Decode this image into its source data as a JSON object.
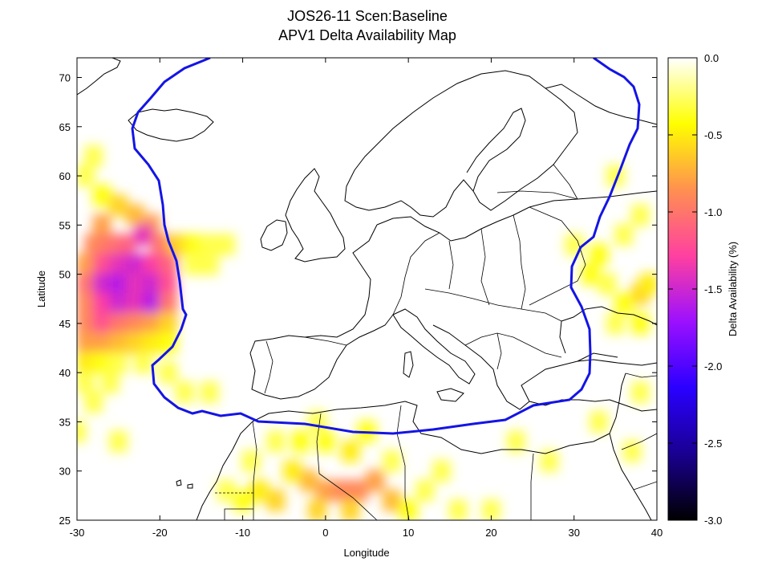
{
  "title": {
    "line1": "JOS26-11 Scen:Baseline",
    "line2": "APV1 Delta Availability Map"
  },
  "axes": {
    "xlabel": "Longitude",
    "ylabel": "Latitude",
    "xlim": [
      -30,
      40
    ],
    "ylim": [
      25,
      72
    ],
    "xticks": [
      -30,
      -20,
      -10,
      0,
      10,
      20,
      30,
      40
    ],
    "yticks": [
      25,
      30,
      35,
      40,
      45,
      50,
      55,
      60,
      65,
      70
    ]
  },
  "colorbar": {
    "label": "Delta Availability (%)",
    "range": [
      -3.0,
      0.0
    ],
    "ticks": [
      "0.0",
      "-0.5",
      "-1.0",
      "-1.5",
      "-2.0",
      "-2.5",
      "-3.0"
    ],
    "tick_values": [
      0.0,
      -0.5,
      -1.0,
      -1.5,
      -2.0,
      -2.5,
      -3.0
    ],
    "colors": [
      "#000000",
      "#1a0090",
      "#2a00ff",
      "#9b10ff",
      "#ff40a0",
      "#ff9050",
      "#ffff00",
      "#ffffff"
    ]
  },
  "colors": {
    "boundary": "#1414e6",
    "coast": "#000000"
  },
  "chart_data": {
    "type": "heatmap",
    "value_name": "Delta Availability (%)",
    "cells_lon_lat_value": [
      [
        -28,
        62,
        -0.3
      ],
      [
        -29,
        60,
        -0.3
      ],
      [
        -27,
        58,
        -0.4
      ],
      [
        -25,
        57,
        -0.6
      ],
      [
        -23,
        56,
        -0.7
      ],
      [
        -21,
        55,
        -0.8
      ],
      [
        -27,
        55,
        -0.8
      ],
      [
        -28,
        53,
        -0.9
      ],
      [
        -26,
        53,
        -1.0
      ],
      [
        -24,
        53,
        -1.1
      ],
      [
        -22,
        54,
        -1.4
      ],
      [
        -20,
        53,
        -1.0
      ],
      [
        -18,
        53,
        -0.6
      ],
      [
        -16,
        53,
        -0.4
      ],
      [
        -14,
        53,
        -0.3
      ],
      [
        -12,
        53,
        -0.3
      ],
      [
        -16,
        51,
        -0.3
      ],
      [
        -14,
        51,
        -0.3
      ],
      [
        -29,
        51,
        -0.8
      ],
      [
        -27,
        51,
        -1.2
      ],
      [
        -25,
        51,
        -1.4
      ],
      [
        -23,
        51,
        -1.5
      ],
      [
        -21,
        51,
        -1.3
      ],
      [
        -19,
        51,
        -1.1
      ],
      [
        -29,
        49,
        -1.0
      ],
      [
        -27,
        49,
        -1.5
      ],
      [
        -25,
        49,
        -1.6
      ],
      [
        -23,
        49,
        -1.4
      ],
      [
        -21,
        49,
        -1.5
      ],
      [
        -19,
        49,
        -1.2
      ],
      [
        -29,
        47,
        -0.9
      ],
      [
        -27,
        47,
        -1.3
      ],
      [
        -25,
        47,
        -1.5
      ],
      [
        -23,
        47,
        -1.4
      ],
      [
        -21,
        47,
        -1.6
      ],
      [
        -19,
        47,
        -1.0
      ],
      [
        -29,
        45,
        -0.9
      ],
      [
        -27,
        45,
        -1.2
      ],
      [
        -25,
        45,
        -1.0
      ],
      [
        -23,
        45,
        -0.9
      ],
      [
        -21,
        45,
        -0.8
      ],
      [
        -19,
        45,
        -0.6
      ],
      [
        -29,
        43,
        -0.8
      ],
      [
        -27,
        43,
        -0.8
      ],
      [
        -25,
        43,
        -0.7
      ],
      [
        -23,
        43,
        -0.6
      ],
      [
        -21,
        43,
        -0.5
      ],
      [
        -19,
        43,
        -0.4
      ],
      [
        -29,
        41,
        -0.5
      ],
      [
        -27,
        41,
        -0.4
      ],
      [
        -25,
        41,
        -0.3
      ],
      [
        -22,
        41,
        -0.3
      ],
      [
        -29,
        39,
        -0.3
      ],
      [
        -26,
        39,
        -0.3
      ],
      [
        -28,
        37,
        -0.3
      ],
      [
        -30,
        34,
        -0.3
      ],
      [
        -25,
        33,
        -0.3
      ],
      [
        -17,
        38,
        -0.3
      ],
      [
        -14,
        38,
        -0.3
      ],
      [
        -19,
        40,
        -0.3
      ],
      [
        -4,
        30,
        -0.5
      ],
      [
        -2,
        29,
        -0.7
      ],
      [
        0,
        28,
        -0.8
      ],
      [
        2,
        28,
        -0.9
      ],
      [
        4,
        28,
        -0.9
      ],
      [
        6,
        29,
        -0.8
      ],
      [
        8,
        27,
        -0.7
      ],
      [
        -6,
        27,
        -0.6
      ],
      [
        -8,
        28,
        -0.5
      ],
      [
        -10,
        27,
        -0.4
      ],
      [
        -12,
        28,
        -0.3
      ],
      [
        -1,
        26,
        -0.6
      ],
      [
        3,
        26,
        -0.6
      ],
      [
        10,
        26,
        -0.4
      ],
      [
        12,
        28,
        -0.3
      ],
      [
        -3,
        33,
        -0.4
      ],
      [
        0,
        33,
        -0.4
      ],
      [
        3,
        32,
        -0.5
      ],
      [
        5,
        34,
        -0.4
      ],
      [
        -1,
        35,
        -0.3
      ],
      [
        8,
        31,
        -0.3
      ],
      [
        14,
        30,
        -0.3
      ],
      [
        -9,
        31,
        -0.3
      ],
      [
        -6,
        33,
        -0.3
      ],
      [
        20,
        26,
        -0.3
      ],
      [
        16,
        26,
        -0.3
      ],
      [
        33,
        52,
        -0.5
      ],
      [
        32,
        50,
        -0.4
      ],
      [
        34,
        49,
        -0.3
      ],
      [
        38,
        48,
        -0.6
      ],
      [
        39,
        49,
        -0.5
      ],
      [
        36,
        47,
        -0.4
      ],
      [
        38,
        45,
        -0.4
      ],
      [
        35,
        45,
        -0.3
      ],
      [
        33,
        52,
        -0.4
      ],
      [
        36,
        54,
        -0.3
      ],
      [
        30,
        53,
        -0.3
      ],
      [
        38,
        56,
        -0.3
      ],
      [
        35,
        60,
        -0.3
      ],
      [
        38,
        38,
        -0.3
      ],
      [
        37,
        32,
        -0.3
      ],
      [
        33,
        35,
        -0.3
      ],
      [
        23,
        33,
        -0.3
      ],
      [
        27,
        31,
        -0.3
      ]
    ]
  }
}
